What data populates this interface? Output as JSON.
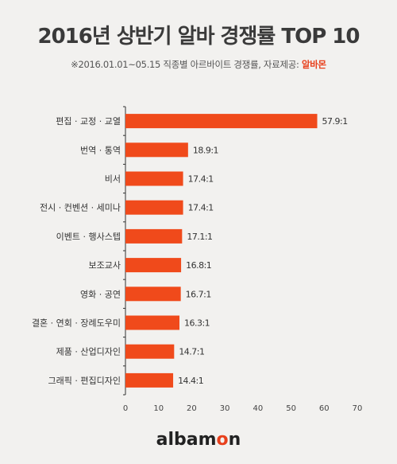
{
  "page": {
    "title": "2016년 상반기 알바 경쟁률 TOP 10",
    "subtitle_prefix": "※2016.01.01~05.15 직종별 아르바이트 경쟁률, 자료제공: ",
    "subtitle_brand": "알바몬",
    "logo_main": "albam",
    "logo_accent": "o",
    "logo_end": "n"
  },
  "colors": {
    "bar": "#f04a1b",
    "axis": "#333333",
    "grid": "#d9d9d9",
    "brand": "#e8401c"
  },
  "chart_data": {
    "type": "bar",
    "orientation": "horizontal",
    "title": "2016년 상반기 알바 경쟁률 TOP 10",
    "categories": [
      "편집 · 교정 · 교열",
      "번역 · 통역",
      "비서",
      "전시 · 컨벤션 · 세미나",
      "이벤트 · 행사스텝",
      "보조교사",
      "영화 · 공연",
      "결혼 · 연회 · 장례도우미",
      "제품 · 산업디자인",
      "그래픽 · 편집디자인"
    ],
    "values": [
      57.9,
      18.9,
      17.4,
      17.4,
      17.1,
      16.8,
      16.7,
      16.3,
      14.7,
      14.4
    ],
    "data_labels": [
      "57.9:1",
      "18.9:1",
      "17.4:1",
      "17.4:1",
      "17.1:1",
      "16.8:1",
      "16.7:1",
      "16.3:1",
      "14.7:1",
      "14.4:1"
    ],
    "xlim": [
      0,
      70
    ],
    "xticks": [
      0,
      10,
      20,
      30,
      40,
      50,
      60,
      70
    ],
    "grid": false,
    "legend": "none"
  }
}
